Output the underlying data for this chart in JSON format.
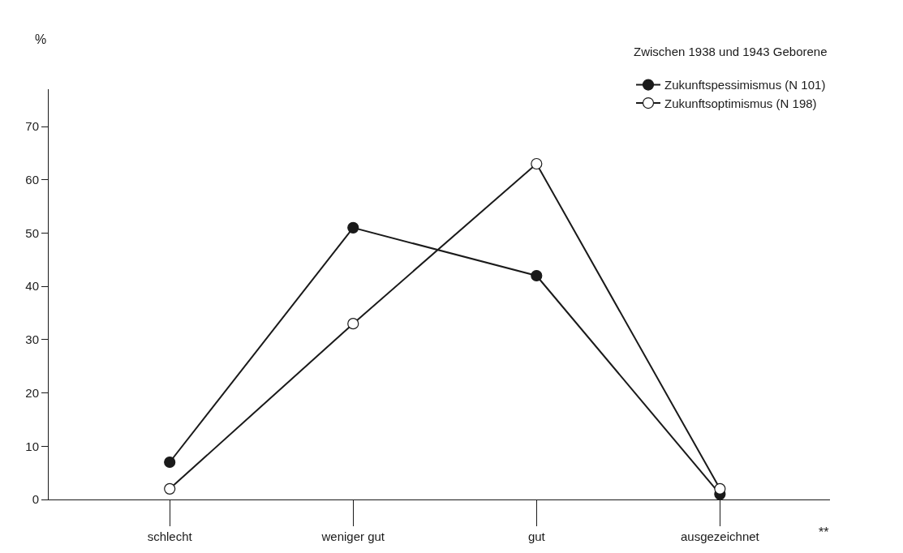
{
  "chart_data": {
    "type": "line",
    "ylabel": "%",
    "legend_title": "Zwischen 1938 und 1943 Geborene",
    "categories": [
      "schlecht",
      "weniger gut",
      "gut",
      "ausgezeichnet"
    ],
    "series": [
      {
        "name": "Zukunftspessimismus (N 101)",
        "color": "#1a1a1a",
        "marker": "circle",
        "values": [
          7,
          51,
          42,
          1
        ]
      },
      {
        "name": "Zukunftsoptimismus (N 198)",
        "color": "#1a1a1a",
        "marker": "circle-open",
        "values": [
          2,
          33,
          63,
          2
        ]
      }
    ],
    "ylim": [
      0,
      77
    ],
    "yticks": [
      0,
      10,
      20,
      30,
      40,
      50,
      60,
      70
    ],
    "grid": false,
    "legend": "top right",
    "annotations": [
      "**"
    ]
  }
}
